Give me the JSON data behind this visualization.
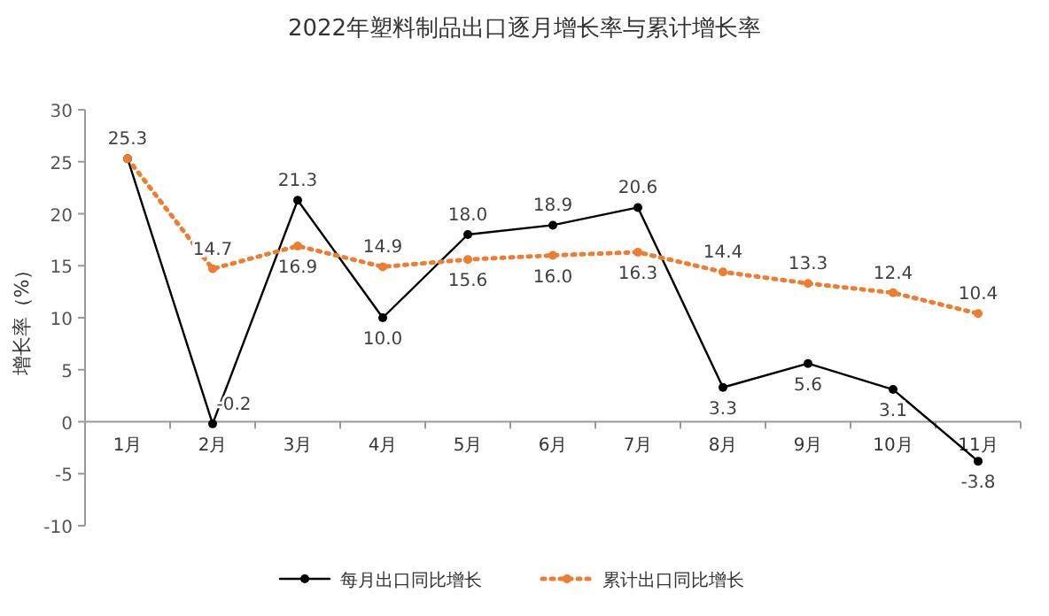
{
  "chart_data": {
    "type": "line",
    "title": "2022年塑料制品出口逐月增长率与累计增长率",
    "ylabel": "增长率（%）",
    "categories": [
      "1月",
      "2月",
      "3月",
      "4月",
      "5月",
      "6月",
      "7月",
      "8月",
      "9月",
      "10月",
      "11月"
    ],
    "series": [
      {
        "name": "每月出口同比增长",
        "color": "#000000",
        "marker": "circle",
        "line_style": "solid",
        "values": [
          25.3,
          -0.2,
          21.3,
          10.0,
          18.0,
          18.9,
          20.6,
          3.3,
          5.6,
          3.1,
          -3.8
        ],
        "value_labels": [
          "25.3",
          "-0.2",
          "21.3",
          "10.0",
          "18.0",
          "18.9",
          "20.6",
          "3.3",
          "5.6",
          "3.1",
          "-3.8"
        ]
      },
      {
        "name": "累计出口同比增长",
        "color": "#ed7d31",
        "marker": "circle",
        "line_style": "dotted",
        "values": [
          25.3,
          14.7,
          16.9,
          14.9,
          15.6,
          16.0,
          16.3,
          14.4,
          13.3,
          12.4,
          10.4
        ],
        "value_labels": [
          null,
          "14.7",
          "16.9",
          "14.9",
          "15.6",
          "16.0",
          "16.3",
          "14.4",
          "13.3",
          "12.4",
          "10.4"
        ]
      }
    ],
    "ylim": [
      -10,
      30
    ],
    "yticks": [
      -10,
      -5,
      0,
      5,
      10,
      15,
      20,
      25,
      30
    ],
    "grid": false,
    "legend": "bottom"
  }
}
